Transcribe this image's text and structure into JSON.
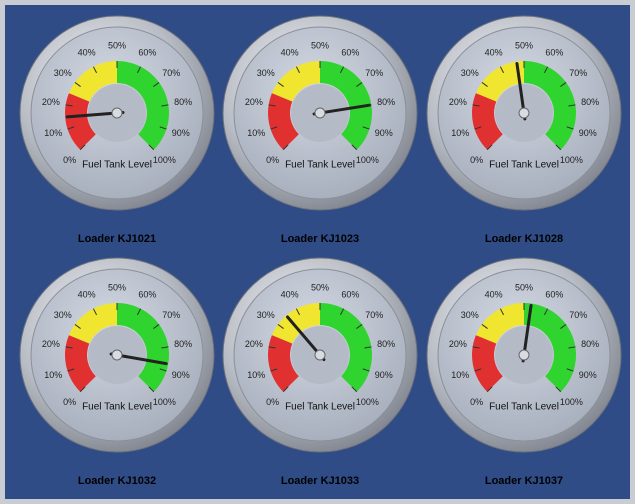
{
  "chart_data": [
    {
      "type": "gauge",
      "title": "Loader KJ1021",
      "label": "Fuel Tank Level",
      "value": 15,
      "ylim": [
        0,
        100
      ],
      "yticks": [
        {
          "value": 0,
          "label": "0%"
        },
        {
          "value": 10,
          "label": "10%"
        },
        {
          "value": 20,
          "label": "20%"
        },
        {
          "value": 30,
          "label": "30%"
        },
        {
          "value": 40,
          "label": "40%"
        },
        {
          "value": 50,
          "label": "50%"
        },
        {
          "value": 60,
          "label": "60%"
        },
        {
          "value": 70,
          "label": "70%"
        },
        {
          "value": 80,
          "label": "80%"
        },
        {
          "value": 90,
          "label": "90%"
        },
        {
          "value": 100,
          "label": "100%"
        }
      ],
      "bands": [
        {
          "from": 0,
          "to": 25,
          "color": "#e03030"
        },
        {
          "from": 25,
          "to": 50,
          "color": "#f0e630"
        },
        {
          "from": 50,
          "to": 100,
          "color": "#2fd42f"
        }
      ]
    },
    {
      "type": "gauge",
      "title": "Loader KJ1023",
      "label": "Fuel Tank Level",
      "value": 80,
      "ylim": [
        0,
        100
      ],
      "yticks": [
        {
          "value": 0,
          "label": "0%"
        },
        {
          "value": 10,
          "label": "10%"
        },
        {
          "value": 20,
          "label": "20%"
        },
        {
          "value": 30,
          "label": "30%"
        },
        {
          "value": 40,
          "label": "40%"
        },
        {
          "value": 50,
          "label": "50%"
        },
        {
          "value": 60,
          "label": "60%"
        },
        {
          "value": 70,
          "label": "70%"
        },
        {
          "value": 80,
          "label": "80%"
        },
        {
          "value": 90,
          "label": "90%"
        },
        {
          "value": 100,
          "label": "100%"
        }
      ],
      "bands": [
        {
          "from": 0,
          "to": 25,
          "color": "#e03030"
        },
        {
          "from": 25,
          "to": 50,
          "color": "#f0e630"
        },
        {
          "from": 50,
          "to": 100,
          "color": "#2fd42f"
        }
      ]
    },
    {
      "type": "gauge",
      "title": "Loader KJ1028",
      "label": "Fuel Tank Level",
      "value": 47,
      "ylim": [
        0,
        100
      ],
      "yticks": [
        {
          "value": 0,
          "label": "0%"
        },
        {
          "value": 10,
          "label": "10%"
        },
        {
          "value": 20,
          "label": "20%"
        },
        {
          "value": 30,
          "label": "30%"
        },
        {
          "value": 40,
          "label": "40%"
        },
        {
          "value": 50,
          "label": "50%"
        },
        {
          "value": 60,
          "label": "60%"
        },
        {
          "value": 70,
          "label": "70%"
        },
        {
          "value": 80,
          "label": "80%"
        },
        {
          "value": 90,
          "label": "90%"
        },
        {
          "value": 100,
          "label": "100%"
        }
      ],
      "bands": [
        {
          "from": 0,
          "to": 25,
          "color": "#e03030"
        },
        {
          "from": 25,
          "to": 50,
          "color": "#f0e630"
        },
        {
          "from": 50,
          "to": 100,
          "color": "#2fd42f"
        }
      ]
    },
    {
      "type": "gauge",
      "title": "Loader KJ1032",
      "label": "Fuel Tank Level",
      "value": 87,
      "ylim": [
        0,
        100
      ],
      "yticks": [
        {
          "value": 0,
          "label": "0%"
        },
        {
          "value": 10,
          "label": "10%"
        },
        {
          "value": 20,
          "label": "20%"
        },
        {
          "value": 30,
          "label": "30%"
        },
        {
          "value": 40,
          "label": "40%"
        },
        {
          "value": 50,
          "label": "50%"
        },
        {
          "value": 60,
          "label": "60%"
        },
        {
          "value": 70,
          "label": "70%"
        },
        {
          "value": 80,
          "label": "80%"
        },
        {
          "value": 90,
          "label": "90%"
        },
        {
          "value": 100,
          "label": "100%"
        }
      ],
      "bands": [
        {
          "from": 0,
          "to": 25,
          "color": "#e03030"
        },
        {
          "from": 25,
          "to": 50,
          "color": "#f0e630"
        },
        {
          "from": 50,
          "to": 100,
          "color": "#2fd42f"
        }
      ]
    },
    {
      "type": "gauge",
      "title": "Loader KJ1033",
      "label": "Fuel Tank Level",
      "value": 35,
      "ylim": [
        0,
        100
      ],
      "yticks": [
        {
          "value": 0,
          "label": "0%"
        },
        {
          "value": 10,
          "label": "10%"
        },
        {
          "value": 20,
          "label": "20%"
        },
        {
          "value": 30,
          "label": "30%"
        },
        {
          "value": 40,
          "label": "40%"
        },
        {
          "value": 50,
          "label": "50%"
        },
        {
          "value": 60,
          "label": "60%"
        },
        {
          "value": 70,
          "label": "70%"
        },
        {
          "value": 80,
          "label": "80%"
        },
        {
          "value": 90,
          "label": "90%"
        },
        {
          "value": 100,
          "label": "100%"
        }
      ],
      "bands": [
        {
          "from": 0,
          "to": 25,
          "color": "#e03030"
        },
        {
          "from": 25,
          "to": 50,
          "color": "#f0e630"
        },
        {
          "from": 50,
          "to": 100,
          "color": "#2fd42f"
        }
      ]
    },
    {
      "type": "gauge",
      "title": "Loader KJ1037",
      "label": "Fuel Tank Level",
      "value": 53,
      "ylim": [
        0,
        100
      ],
      "yticks": [
        {
          "value": 0,
          "label": "0%"
        },
        {
          "value": 10,
          "label": "10%"
        },
        {
          "value": 20,
          "label": "20%"
        },
        {
          "value": 30,
          "label": "30%"
        },
        {
          "value": 40,
          "label": "40%"
        },
        {
          "value": 50,
          "label": "50%"
        },
        {
          "value": 60,
          "label": "60%"
        },
        {
          "value": 70,
          "label": "70%"
        },
        {
          "value": 80,
          "label": "80%"
        },
        {
          "value": 90,
          "label": "90%"
        },
        {
          "value": 100,
          "label": "100%"
        }
      ],
      "bands": [
        {
          "from": 0,
          "to": 25,
          "color": "#e03030"
        },
        {
          "from": 25,
          "to": 50,
          "color": "#f0e630"
        },
        {
          "from": 50,
          "to": 100,
          "color": "#2fd42f"
        }
      ]
    }
  ]
}
